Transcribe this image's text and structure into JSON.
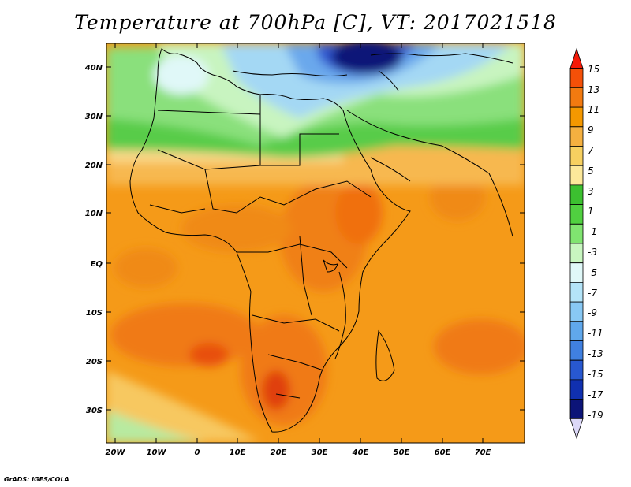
{
  "title": "Temperature at 700hPa [C], VT: 2017021518",
  "credit": "GrADS: IGES/COLA",
  "map": {
    "lat_labels": [
      "40N",
      "30N",
      "20N",
      "10N",
      "EQ",
      "10S",
      "20S",
      "30S"
    ],
    "lon_labels": [
      "20W",
      "10W",
      "0",
      "10E",
      "20E",
      "30E",
      "40E",
      "50E",
      "60E",
      "70E"
    ]
  },
  "colorbar": {
    "labels": [
      "15",
      "13",
      "11",
      "9",
      "7",
      "5",
      "3",
      "1",
      "-1",
      "-3",
      "-5",
      "-7",
      "-9",
      "-11",
      "-13",
      "-15",
      "-17",
      "-19"
    ],
    "colors": [
      "#f41a08",
      "#f45008",
      "#f27a10",
      "#f59800",
      "#f5b040",
      "#f7d060",
      "#fce89a",
      "#3cc030",
      "#50d040",
      "#80e470",
      "#c8f6c0",
      "#e0f8f8",
      "#b4e4f8",
      "#88c8f4",
      "#60a8ec",
      "#4080e0",
      "#2858d0",
      "#1030b0",
      "#0c1478",
      "#dcd8f8"
    ]
  }
}
